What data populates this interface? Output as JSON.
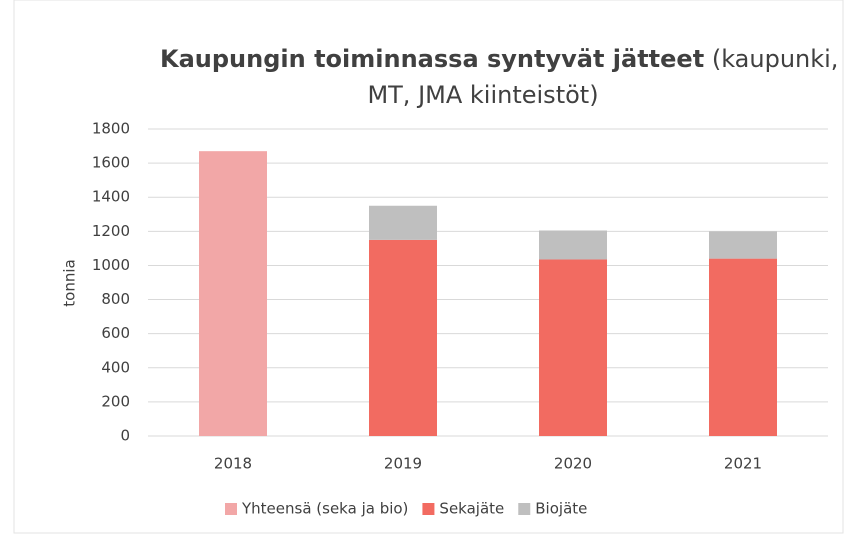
{
  "chart_data": {
    "type": "stacked_bar",
    "title": [
      "Kaupungin toiminnassa syntyvät jätteet",
      "(kaupunki,",
      "MT, JMA kiinteistöt)"
    ],
    "y_label": "tonnia",
    "categories": [
      "2018",
      "2019",
      "2020",
      "2021"
    ],
    "series": [
      {
        "name": "Yhteensä (seka ja bio)",
        "color": "#f2a7a7",
        "values": [
          1670,
          null,
          null,
          null
        ]
      },
      {
        "name": "Sekajäte",
        "color": "#f26b61",
        "values": [
          null,
          1150,
          1035,
          1040
        ]
      },
      {
        "name": "Biojäte",
        "color": "#bfbfbf",
        "values": [
          null,
          200,
          170,
          160
        ]
      }
    ],
    "ylim": [
      0,
      1800
    ],
    "yticks": [
      0,
      200,
      400,
      600,
      800,
      1000,
      1200,
      1400,
      1600,
      1800
    ],
    "grid": true,
    "legend": "bottom"
  }
}
